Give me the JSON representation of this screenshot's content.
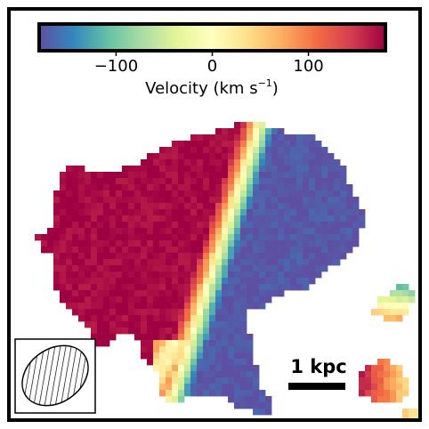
{
  "chart_data": {
    "type": "heatmap",
    "title": "",
    "colorbar": {
      "label": "Velocity (km s",
      "label_superscript": "−1",
      "label_close": ")",
      "range": [
        -180,
        180
      ],
      "ticks": [
        {
          "value": -100,
          "label": "−100"
        },
        {
          "value": 0,
          "label": "0"
        },
        {
          "value": 100,
          "label": "100"
        }
      ],
      "colormap": "Spectral_r",
      "colormap_stops": [
        "#5e4fa2",
        "#3288bd",
        "#66c2a5",
        "#abdda4",
        "#e6f598",
        "#ffffbf",
        "#fee08b",
        "#fdae61",
        "#f46d43",
        "#d53e4f",
        "#9e0142"
      ]
    },
    "velocity_gradient": "positive (receding) on left / east, negative (approaching) on right / west",
    "approx_extrema_km_s": [
      -180,
      180
    ],
    "scale_bar": {
      "label": "1 kpc"
    },
    "beam": {
      "shape": "ellipse",
      "hatch": "diagonal"
    },
    "grid": false,
    "colors": {
      "frame": "#000000",
      "background": "#ffffff"
    }
  }
}
